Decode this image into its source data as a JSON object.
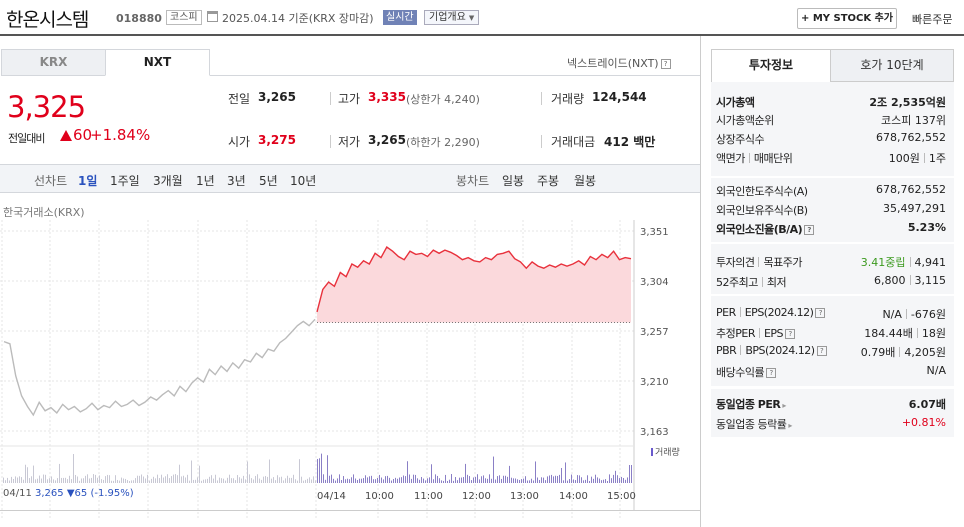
{
  "header": {
    "company_name": "한온시스템",
    "stock_code": "018880",
    "market": "코스피",
    "date_text": "2025.04.14  기준(KRX 장마감)",
    "realtime": "실시간",
    "company_overview": "기업개요",
    "mystock_label": "MY STOCK 추가",
    "quick_order": "빠른주문"
  },
  "tabs": {
    "krx": "KRX",
    "nxt": "NXT",
    "nextrade": "넥스트레이드(NXT)"
  },
  "price": {
    "current": "3,325",
    "change_label": "전일대비",
    "change": "60",
    "rate": "+1.84%"
  },
  "summary": {
    "prev_label": "전일",
    "prev": "3,265",
    "high_label": "고가",
    "high": "3,335",
    "upper_limit": "(상한가 4,240)",
    "volume_label": "거래량",
    "volume": "124,544",
    "open_label": "시가",
    "open": "3,275",
    "low_label": "저가",
    "low": "3,265",
    "lower_limit": "(하한가 2,290)",
    "amount_label": "거래대금",
    "amount": "412 백만"
  },
  "toolbar": {
    "line_chart": "선차트",
    "periods": [
      "1일",
      "1주일",
      "3개월",
      "1년",
      "3년",
      "5년",
      "10년"
    ],
    "candle_chart": "봉차트",
    "candles": [
      "일봉",
      "주봉",
      "월봉"
    ]
  },
  "chart_source": "한국거래소(KRX)",
  "chart_data": {
    "type": "line",
    "y_ticks": [
      "3,351",
      "3,304",
      "3,257",
      "3,210",
      "3,163"
    ],
    "ylim": [
      3163,
      3351
    ],
    "x_ticks": [
      "04/11",
      "04/14",
      "10:00",
      "11:00",
      "12:00",
      "13:00",
      "14:00",
      "15:00"
    ],
    "volume_label": "거래량",
    "prev_close": 3265,
    "series": [
      {
        "values": [
          3247,
          3245,
          3215,
          3196,
          3186,
          3178,
          3190,
          3182,
          3185,
          3180,
          3188,
          3183,
          3186,
          3181,
          3184,
          3189,
          3183,
          3187,
          3185,
          3191,
          3186,
          3188,
          3192,
          3187,
          3190,
          3195,
          3192,
          3197,
          3201,
          3196,
          3205,
          3200,
          3208,
          3213,
          3209,
          3221,
          3216,
          3224,
          3219,
          3227,
          3222,
          3230,
          3228,
          3236,
          3232,
          3240,
          3238,
          3246,
          3250,
          3256,
          3262,
          3266,
          3262,
          3268
        ]
      },
      {
        "values": [
          3275,
          3296,
          3303,
          3299,
          3312,
          3308,
          3320,
          3317,
          3323,
          3320,
          3330,
          3326,
          3336,
          3332,
          3327,
          3324,
          3332,
          3329,
          3330,
          3327,
          3333,
          3330,
          3333,
          3331,
          3328,
          3324,
          3326,
          3323,
          3322,
          3326,
          3324,
          3329,
          3330,
          3332,
          3325,
          3322,
          3316,
          3322,
          3318,
          3316,
          3319,
          3317,
          3320,
          3318,
          3320,
          3323,
          3319,
          3327,
          3324,
          3329,
          3326,
          3332,
          3324,
          3326,
          3325
        ]
      }
    ]
  },
  "info": {
    "tab_invest": "투자정보",
    "tab_hoga": "호가 10단계",
    "market_cap_label": "시가총액",
    "market_cap": "2조 2,535억원",
    "market_cap_rank_label": "시가총액순위",
    "market_cap_rank": "코스피 137위",
    "shares_label": "상장주식수",
    "shares": "678,762,552",
    "par_label": "액면가",
    "unit_label": "매매단위",
    "par": "100원",
    "unit": "1주",
    "foreign_limit_label": "외국인한도주식수(A)",
    "foreign_limit": "678,762,552",
    "foreign_hold_label": "외국인보유주식수(B)",
    "foreign_hold": "35,497,291",
    "foreign_rate_label": "외국인소진율(B/A)",
    "foreign_rate": "5.23%",
    "opinion_label": "투자의견",
    "target_label": "목표주가",
    "opinion": "3.41중립",
    "target": "4,941",
    "wk52_label": "52주최고",
    "wk52_low_label": "최저",
    "wk52_high": "6,800",
    "wk52_low": "3,115",
    "per_label": "PER",
    "eps_label": "EPS(2024.12)",
    "per": "N/A",
    "eps": "-676원",
    "est_per_label": "추정PER",
    "est_eps_label": "EPS",
    "est_per": "184.44배",
    "est_eps": "18원",
    "pbr_label": "PBR",
    "bps_label": "BPS(2024.12)",
    "pbr": "0.79배",
    "bps": "4,205원",
    "div_label": "배당수익률",
    "div": "N/A",
    "sector_per_label": "동일업종 PER",
    "sector_per": "6.07배",
    "sector_rate_label": "동일업종 등락률",
    "sector_rate": "+0.81%"
  },
  "bottom": {
    "prev_date": "04/11",
    "prev_close": "3,265",
    "prev_change": "65",
    "prev_rate": "(-1.95%)"
  }
}
